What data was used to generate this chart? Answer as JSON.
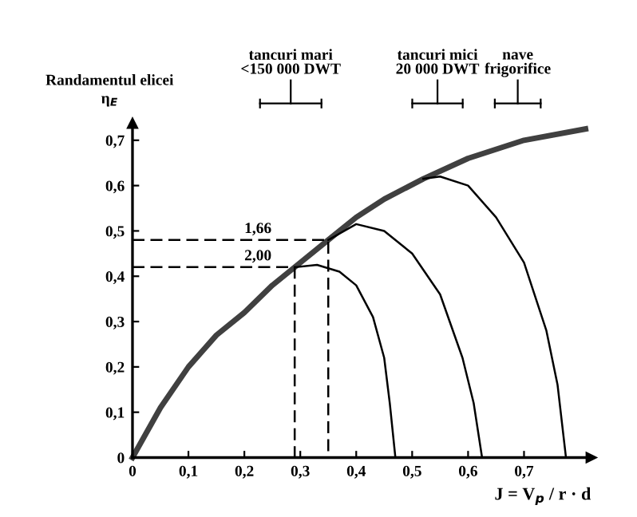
{
  "chart_data": {
    "type": "line",
    "xlabel": "J = V$_{p}$ / r · d",
    "ylabel": "Randamentul elicei\nη$_{E}$",
    "xlim": [
      0,
      0.82
    ],
    "ylim": [
      0,
      0.73
    ],
    "xticks": [
      {
        "value": 0,
        "label": "0"
      },
      {
        "value": 0.1,
        "label": "0,1"
      },
      {
        "value": 0.2,
        "label": "0,2"
      },
      {
        "value": 0.3,
        "label": "0,3"
      },
      {
        "value": 0.4,
        "label": "0,4"
      },
      {
        "value": 0.5,
        "label": "0,5"
      },
      {
        "value": 0.6,
        "label": "0,6"
      },
      {
        "value": 0.7,
        "label": "0,7"
      }
    ],
    "yticks": [
      {
        "value": 0,
        "label": "0"
      },
      {
        "value": 0.1,
        "label": "0,1"
      },
      {
        "value": 0.2,
        "label": "0,2"
      },
      {
        "value": 0.3,
        "label": "0,3"
      },
      {
        "value": 0.4,
        "label": "0,4"
      },
      {
        "value": 0.5,
        "label": "0,5"
      },
      {
        "value": 0.6,
        "label": "0,6"
      },
      {
        "value": 0.7,
        "label": "0,7"
      }
    ],
    "grid": false,
    "marker": "none",
    "series": [
      {
        "color": "#404040",
        "line_style": "solid",
        "x": [
          0,
          0.05,
          0.1,
          0.15,
          0.2,
          0.25,
          0.29,
          0.35,
          0.4,
          0.45,
          0.52,
          0.6,
          0.7,
          0.81
        ],
        "values": [
          0,
          0.11,
          0.2,
          0.27,
          0.32,
          0.38,
          0.42,
          0.48,
          0.53,
          0.57,
          0.615,
          0.66,
          0.7,
          0.725
        ]
      },
      {
        "color": "#000000",
        "line_style": "solid",
        "x": [
          0.29,
          0.33,
          0.37,
          0.4,
          0.43,
          0.45,
          0.46,
          0.47
        ],
        "values": [
          0.42,
          0.425,
          0.41,
          0.38,
          0.31,
          0.22,
          0.12,
          0
        ]
      },
      {
        "color": "#000000",
        "line_style": "solid",
        "x": [
          0.35,
          0.4,
          0.45,
          0.5,
          0.55,
          0.59,
          0.61,
          0.625
        ],
        "values": [
          0.48,
          0.515,
          0.5,
          0.45,
          0.36,
          0.22,
          0.12,
          0
        ]
      },
      {
        "color": "#000000",
        "line_style": "solid",
        "x": [
          0.52,
          0.55,
          0.6,
          0.65,
          0.7,
          0.74,
          0.76,
          0.775
        ],
        "values": [
          0.615,
          0.62,
          0.6,
          0.53,
          0.43,
          0.28,
          0.16,
          0
        ]
      },
      {
        "color": "#000000",
        "line_style": "dashed",
        "x": [
          0,
          0.35,
          0.35
        ],
        "values": [
          0.48,
          0.48,
          0
        ]
      },
      {
        "color": "#000000",
        "line_style": "dashed",
        "x": [
          0,
          0.29,
          0.29
        ],
        "values": [
          0.42,
          0.42,
          0
        ]
      }
    ],
    "annotations": [
      {
        "text": "1,66",
        "x": 0.2,
        "y": 0.48
      },
      {
        "text": "2,00",
        "x": 0.2,
        "y": 0.42
      },
      "tancuri mari\n<150 000 DWT",
      "tancuri mici\n20 000 DWT",
      "nave\nfrigorifice"
    ]
  }
}
